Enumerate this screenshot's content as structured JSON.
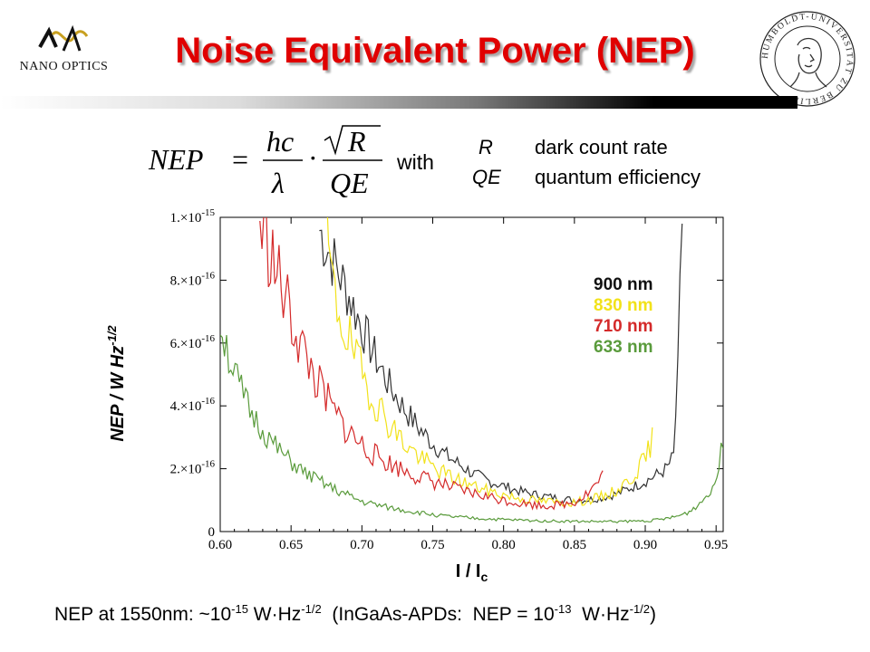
{
  "header": {
    "title": "Noise Equivalent Power (NEP)",
    "logo_left_text": "NANO OPTICS",
    "seal_text": "HUMBOLDT-UNIVERSITÄT ZU BERLIN"
  },
  "formula": {
    "lhs": "NEP",
    "numerator": "hc",
    "denominator": "λ",
    "rad_numerator": "R",
    "rad_denominator": "QE",
    "with_label": "with",
    "legend_symbols": [
      "R",
      "QE"
    ],
    "legend_defs": [
      "dark count rate",
      "quantum efficiency"
    ]
  },
  "footer": {
    "p1": "NEP at 1550nm: ~10",
    "e1": "-15",
    "p2": " W·Hz",
    "e2": "-1/2",
    "p3": "  (InGaAs-APDs:  NEP = 10",
    "e3": "-13",
    "p4": "  W·Hz",
    "e4": "-1/2",
    "p5": ")"
  },
  "colors": {
    "title": "#e00000",
    "s900": "#333333",
    "s830": "#f2e21a",
    "s710": "#d42a2a",
    "s633": "#5a9b3c"
  },
  "chart_data": {
    "type": "line",
    "xlabel": "I / I",
    "xlabel_sub": "c",
    "ylabel": "NEP / W Hz",
    "ylabel_sup": "-1/2",
    "xlim": [
      0.6,
      0.955
    ],
    "ylim": [
      0,
      1e-15
    ],
    "xticks": [
      0.6,
      0.65,
      0.7,
      0.75,
      0.8,
      0.85,
      0.9,
      0.95
    ],
    "xtick_labels": [
      "0.60",
      "0.65",
      "0.70",
      "0.75",
      "0.80",
      "0.85",
      "0.90",
      "0.95"
    ],
    "yticks": [
      0,
      2e-16,
      4e-16,
      6e-16,
      8e-16,
      1e-15
    ],
    "ytick_mantissa": [
      "0",
      "2.×10",
      "4.×10",
      "6.×10",
      "8.×10",
      "1.×10"
    ],
    "ytick_exp": [
      "",
      "-16",
      "-16",
      "-16",
      "-16",
      "-15"
    ],
    "legend_position": "top-right",
    "series": [
      {
        "name": "900 nm",
        "x": [
          0.67,
          0.68,
          0.69,
          0.7,
          0.71,
          0.72,
          0.73,
          0.74,
          0.75,
          0.76,
          0.77,
          0.78,
          0.79,
          0.8,
          0.81,
          0.82,
          0.83,
          0.84,
          0.85,
          0.86,
          0.87,
          0.88,
          0.89,
          0.9,
          0.91,
          0.915,
          0.92,
          0.923,
          0.926
        ],
        "y": [
          9.6e-16,
          8.6e-16,
          7.6e-16,
          6.5e-16,
          5.5e-16,
          4.6e-16,
          3.9e-16,
          3.3e-16,
          2.8e-16,
          2.4e-16,
          2.1e-16,
          1.8e-16,
          1.6e-16,
          1.45e-16,
          1.3e-16,
          1.2e-16,
          1.12e-16,
          1.05e-16,
          1e-16,
          1.02e-16,
          1.08e-16,
          1.2e-16,
          1.4e-16,
          1.6e-16,
          1.85e-16,
          2e-16,
          2.4e-16,
          5e-16,
          1e-15
        ],
        "noise": 0.12,
        "seed": 7
      },
      {
        "name": "830 nm",
        "x": [
          0.675,
          0.68,
          0.69,
          0.7,
          0.71,
          0.72,
          0.73,
          0.74,
          0.75,
          0.76,
          0.77,
          0.78,
          0.79,
          0.8,
          0.81,
          0.82,
          0.83,
          0.84,
          0.85,
          0.86,
          0.87,
          0.88,
          0.89,
          0.9,
          0.905
        ],
        "y": [
          9.5e-16,
          7.5e-16,
          6.2e-16,
          5e-16,
          4.1e-16,
          3.4e-16,
          2.8e-16,
          2.4e-16,
          2.05e-16,
          1.8e-16,
          1.6e-16,
          1.42e-16,
          1.28e-16,
          1.17e-16,
          1.07e-16,
          1e-16,
          9.6e-17,
          9.3e-17,
          9.3e-17,
          1e-16,
          1.12e-16,
          1.3e-16,
          1.7e-16,
          2.3e-16,
          2.9e-16
        ],
        "noise": 0.15,
        "seed": 19
      },
      {
        "name": "710 nm",
        "x": [
          0.628,
          0.635,
          0.64,
          0.65,
          0.66,
          0.67,
          0.68,
          0.69,
          0.7,
          0.71,
          0.72,
          0.73,
          0.74,
          0.75,
          0.76,
          0.77,
          0.78,
          0.79,
          0.8,
          0.81,
          0.82,
          0.83,
          0.84,
          0.85,
          0.86,
          0.87
        ],
        "y": [
          9.8e-16,
          9e-16,
          8.2e-16,
          6.8e-16,
          5.6e-16,
          4.6e-16,
          3.8e-16,
          3.2e-16,
          2.75e-16,
          2.4e-16,
          2.15e-16,
          1.95e-16,
          1.75e-16,
          1.6e-16,
          1.45e-16,
          1.3e-16,
          1.2e-16,
          1.1e-16,
          1e-16,
          9.2e-17,
          8.6e-17,
          8.3e-17,
          8.5e-17,
          9.5e-17,
          1.25e-16,
          1.75e-16
        ],
        "noise": 0.16,
        "seed": 33
      },
      {
        "name": "633 nm",
        "x": [
          0.6,
          0.61,
          0.62,
          0.63,
          0.64,
          0.65,
          0.66,
          0.67,
          0.68,
          0.69,
          0.7,
          0.72,
          0.74,
          0.76,
          0.78,
          0.8,
          0.82,
          0.84,
          0.86,
          0.88,
          0.9,
          0.91,
          0.92,
          0.93,
          0.94,
          0.95,
          0.955
        ],
        "y": [
          6.7e-16,
          5e-16,
          3.9e-16,
          3.2e-16,
          2.65e-16,
          2.2e-16,
          1.85e-16,
          1.6e-16,
          1.35e-16,
          1.15e-16,
          9.5e-17,
          7.5e-17,
          6e-17,
          4.8e-17,
          4.2e-17,
          3.8e-17,
          3.5e-17,
          3.3e-17,
          3.2e-17,
          3.2e-17,
          3.4e-17,
          3.8e-17,
          4.5e-17,
          6e-17,
          9.5e-17,
          1.6e-16,
          2.9e-16
        ],
        "noise": 0.13,
        "seed": 51
      }
    ]
  }
}
